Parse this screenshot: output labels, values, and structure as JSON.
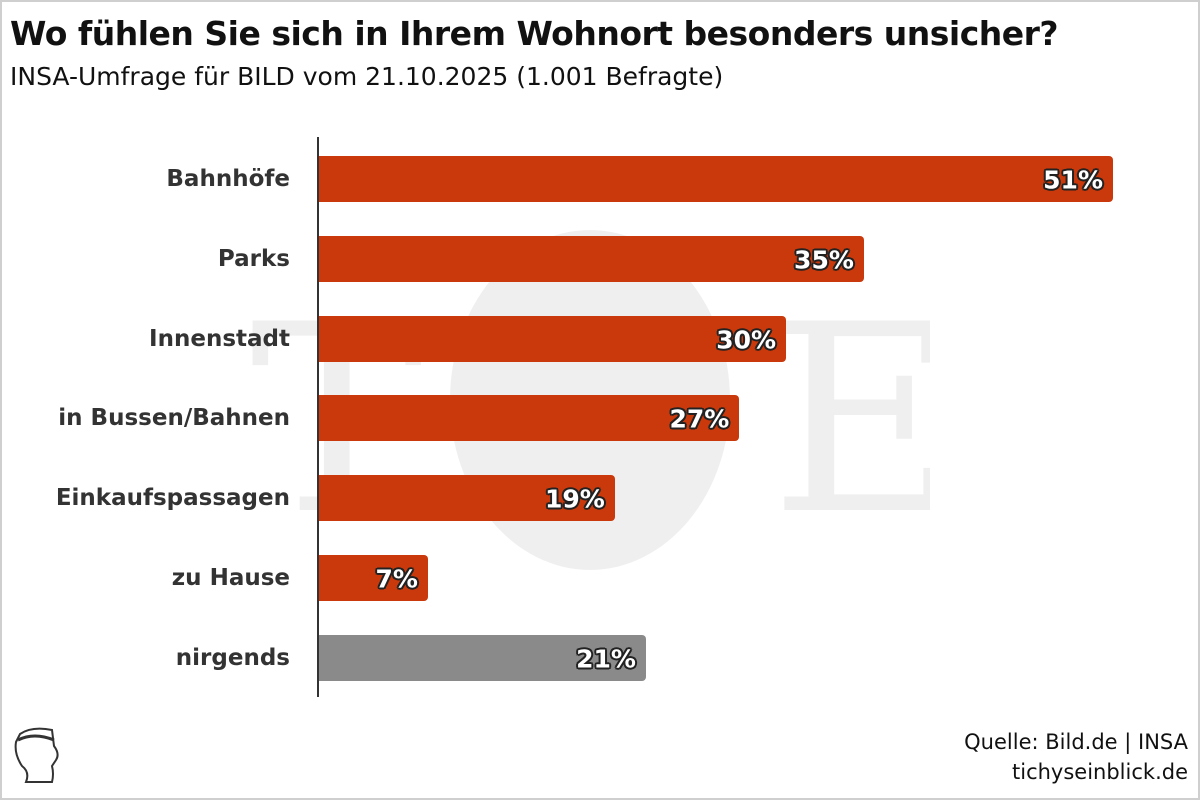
{
  "chart_data": {
    "type": "bar",
    "orientation": "horizontal",
    "title": "Wo fühlen Sie sich in Ihrem Wohnort besonders unsicher?",
    "subtitle": "INSA-Umfrage für BILD vom 21.10.2025 (1.001 Befragte)",
    "categories": [
      "Bahnhöfe",
      "Parks",
      "Innenstadt",
      "in Bussen/Bahnen",
      "Einkaufspassagen",
      "zu Hause",
      "nirgends"
    ],
    "values": [
      51,
      35,
      30,
      27,
      19,
      7,
      21
    ],
    "value_labels": [
      "51%",
      "35%",
      "30%",
      "27%",
      "19%",
      "7%",
      "21%"
    ],
    "colors": [
      "#c9390b",
      "#c9390b",
      "#c9390b",
      "#c9390b",
      "#c9390b",
      "#c9390b",
      "#8a8a8a"
    ],
    "xlim": [
      0,
      51
    ],
    "unit": "%",
    "grid": false
  },
  "footer": {
    "source": "Quelle: Bild.de | INSA",
    "site": "tichyseinblick.de"
  },
  "watermark": "TE"
}
